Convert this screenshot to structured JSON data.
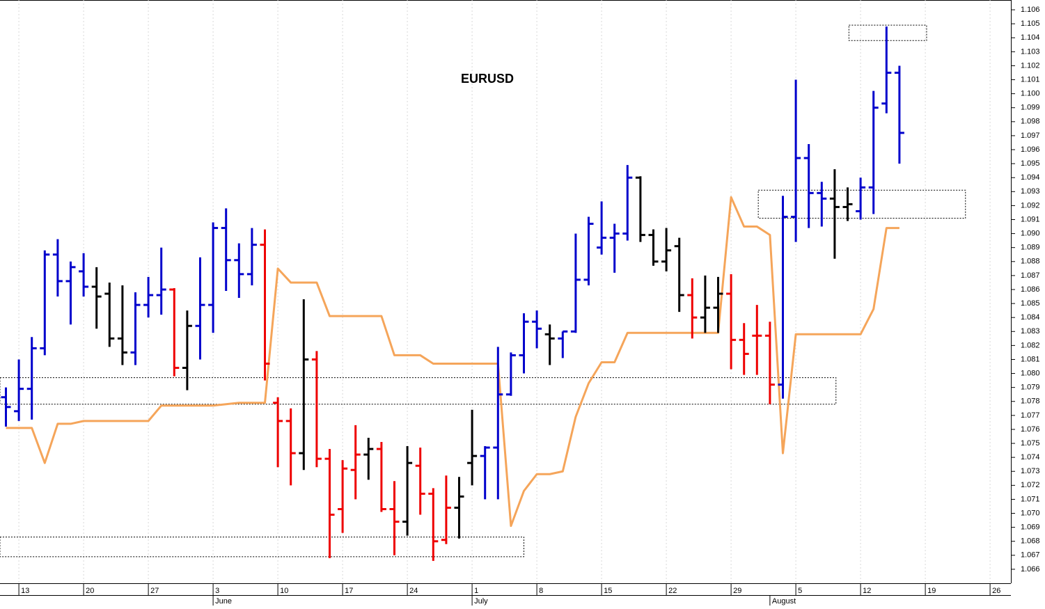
{
  "chart_data": {
    "type": "ohlc",
    "title": "EURUSD",
    "categories": [
      null,
      "13",
      null,
      null,
      null,
      null,
      "20",
      null,
      null,
      null,
      null,
      "27",
      null,
      null,
      null,
      null,
      "3",
      null,
      null,
      null,
      null,
      "10",
      null,
      null,
      null,
      null,
      "17",
      null,
      null,
      null,
      null,
      "24",
      null,
      null,
      null,
      null,
      "1",
      null,
      null,
      null,
      null,
      "8",
      null,
      null,
      null,
      null,
      "15",
      null,
      null,
      null,
      null,
      "22",
      null,
      null,
      null,
      null,
      "29",
      null,
      null,
      null,
      null,
      "5",
      null,
      null,
      null,
      null,
      "12",
      null,
      null,
      null,
      null,
      "19",
      null,
      null,
      null,
      null,
      "26",
      null
    ],
    "months": [
      null,
      null,
      null,
      null,
      null,
      null,
      null,
      null,
      null,
      null,
      null,
      null,
      null,
      null,
      null,
      null,
      "June",
      null,
      null,
      null,
      null,
      null,
      null,
      null,
      null,
      null,
      null,
      null,
      null,
      null,
      null,
      null,
      null,
      null,
      null,
      null,
      "July",
      null,
      null,
      null,
      null,
      null,
      null,
      null,
      null,
      null,
      null,
      null,
      null,
      null,
      null,
      null,
      null,
      null,
      null,
      null,
      null,
      null,
      null,
      "August",
      null,
      null,
      null,
      null,
      null,
      null,
      null,
      null,
      null,
      null,
      null,
      null,
      null,
      null,
      null,
      null,
      null,
      null
    ],
    "open": [
      1.0783,
      1.0773,
      1.0789,
      1.0818,
      1.0885,
      1.0866,
      1.0873,
      1.0862,
      1.0857,
      1.0825,
      1.0815,
      1.0849,
      1.0856,
      1.086,
      1.0804,
      1.0834,
      1.0849,
      1.0904,
      1.0881,
      1.0871,
      1.0892,
      1.0779,
      1.0766,
      1.0743,
      1.081,
      1.0739,
      1.0703,
      1.0731,
      1.0742,
      1.0746,
      1.0703,
      1.0694,
      1.0734,
      1.0714,
      1.0681,
      1.0704,
      1.0736,
      1.0741,
      1.0747,
      1.0785,
      1.0813,
      1.0837,
      1.0828,
      1.0825,
      1.083,
      1.0867,
      1.089,
      1.0897,
      1.09,
      1.094,
      1.0899,
      1.088,
      1.0891,
      1.0856,
      1.084,
      1.0847,
      1.0857,
      1.0824,
      1.0827,
      1.0827,
      1.0792,
      1.0912,
      1.0954,
      1.0929,
      1.0925,
      1.0919,
      1.0916,
      1.0933,
      1.0993,
      1.1015,
      null,
      null,
      null,
      null,
      null,
      null,
      null,
      null
    ],
    "high": [
      1.079,
      1.081,
      1.0826,
      1.0888,
      1.0896,
      1.088,
      1.0886,
      1.0876,
      1.0865,
      1.0863,
      1.0858,
      1.0869,
      1.089,
      1.0861,
      1.0845,
      1.0883,
      1.0908,
      1.0918,
      1.0893,
      1.0904,
      1.0903,
      1.0783,
      1.0775,
      1.0853,
      1.0816,
      1.0746,
      1.0738,
      1.0763,
      1.0754,
      1.0751,
      1.0723,
      1.0748,
      1.0747,
      1.0718,
      1.0727,
      1.0726,
      1.0774,
      1.0748,
      1.0819,
      1.0815,
      1.0843,
      1.0845,
      1.0835,
      1.083,
      1.09,
      1.0912,
      1.0923,
      1.0907,
      1.0949,
      1.0941,
      1.0903,
      1.0904,
      1.0897,
      1.0868,
      1.087,
      1.0869,
      1.0871,
      1.0836,
      1.0849,
      1.0837,
      1.0927,
      1.101,
      1.0964,
      1.0937,
      1.0946,
      1.0933,
      1.094,
      1.1002,
      1.1048,
      1.102,
      null,
      null,
      null,
      null,
      null,
      null,
      null,
      null
    ],
    "low": [
      1.0762,
      1.0766,
      1.0767,
      1.0813,
      1.0855,
      1.0835,
      1.0855,
      1.0832,
      1.0819,
      1.0806,
      1.0806,
      1.084,
      1.0842,
      1.0798,
      1.0788,
      1.081,
      1.0829,
      1.0859,
      1.0854,
      1.0863,
      1.0795,
      1.0733,
      1.072,
      1.0731,
      1.0733,
      1.0668,
      1.0686,
      1.071,
      1.0724,
      1.0701,
      1.067,
      1.0684,
      1.0699,
      1.0666,
      1.0678,
      1.0682,
      1.072,
      1.071,
      1.071,
      1.0784,
      1.08,
      1.0818,
      1.0806,
      1.0811,
      1.0829,
      1.0863,
      1.0885,
      1.0872,
      1.0895,
      1.0894,
      1.0877,
      1.0873,
      1.0844,
      1.0825,
      1.0829,
      1.0829,
      1.0803,
      1.0799,
      1.0799,
      1.0778,
      1.0782,
      1.0894,
      1.0904,
      1.0905,
      1.0882,
      1.0909,
      1.091,
      1.0914,
      1.0986,
      1.095,
      null,
      null,
      null,
      null,
      null,
      null,
      null,
      null
    ],
    "close": [
      1.0776,
      1.0789,
      1.0818,
      1.0885,
      1.0866,
      1.0876,
      1.0862,
      1.0855,
      1.0825,
      1.0815,
      1.0849,
      1.0856,
      1.086,
      1.0804,
      1.0834,
      1.0849,
      1.0904,
      1.0881,
      1.0871,
      1.0892,
      1.0807,
      1.0766,
      1.0743,
      1.081,
      1.0739,
      1.0699,
      1.0732,
      1.0742,
      1.0746,
      1.0703,
      1.0694,
      1.0736,
      1.0714,
      1.068,
      1.0704,
      1.0712,
      1.0741,
      1.0747,
      1.0785,
      1.0813,
      1.0837,
      1.0832,
      1.0825,
      1.083,
      1.0867,
      1.0907,
      1.0897,
      1.09,
      1.094,
      1.0899,
      1.088,
      1.0888,
      1.0856,
      1.084,
      1.0847,
      1.0857,
      1.0824,
      1.0814,
      1.0827,
      1.0792,
      1.0912,
      1.0954,
      1.0929,
      1.0925,
      1.0919,
      1.0921,
      1.0933,
      1.099,
      1.1015,
      1.0972,
      null,
      null,
      null,
      null,
      null,
      null,
      null,
      null
    ],
    "bar_colors": [
      "#0000cc",
      "#0000cc",
      "#0000cc",
      "#0000cc",
      "#0000cc",
      "#0000cc",
      "#0000cc",
      "#000000",
      "#000000",
      "#000000",
      "#0000cc",
      "#0000cc",
      "#0000cc",
      "#ee0000",
      "#000000",
      "#0000cc",
      "#0000cc",
      "#0000cc",
      "#0000cc",
      "#0000cc",
      "#ee0000",
      "#ee0000",
      "#ee0000",
      "#000000",
      "#ee0000",
      "#ee0000",
      "#ee0000",
      "#ee0000",
      "#000000",
      "#ee0000",
      "#ee0000",
      "#000000",
      "#ee0000",
      "#ee0000",
      "#ee0000",
      "#000000",
      "#000000",
      "#0000cc",
      "#0000cc",
      "#0000cc",
      "#0000cc",
      "#0000cc",
      "#000000",
      "#0000cc",
      "#0000cc",
      "#0000cc",
      "#0000cc",
      "#0000cc",
      "#0000cc",
      "#000000",
      "#000000",
      "#000000",
      "#000000",
      "#ee0000",
      "#000000",
      "#000000",
      "#ee0000",
      "#ee0000",
      "#ee0000",
      "#ee0000",
      "#0000cc",
      "#0000cc",
      "#0000cc",
      "#0000cc",
      "#000000",
      "#000000",
      "#0000cc",
      "#0000cc",
      "#0000cc",
      "#0000cc",
      null,
      null,
      null,
      null,
      null,
      null,
      null,
      null
    ],
    "line": {
      "color": "#f5a55a",
      "values": [
        1.0761,
        1.0761,
        1.0761,
        1.0736,
        1.0764,
        1.0764,
        1.0766,
        1.0766,
        1.0766,
        1.0766,
        1.0766,
        1.0766,
        1.0777,
        1.0777,
        1.0777,
        1.0777,
        1.0777,
        1.0778,
        1.0779,
        1.0779,
        1.0779,
        1.0875,
        1.0865,
        1.0865,
        1.0865,
        1.0841,
        1.0841,
        1.0841,
        1.0841,
        1.0841,
        1.0813,
        1.0813,
        1.0813,
        1.0807,
        1.0807,
        1.0807,
        1.0807,
        1.0807,
        1.0807,
        1.0691,
        1.0716,
        1.0728,
        1.0728,
        1.073,
        1.0769,
        1.0793,
        1.0808,
        1.0808,
        1.0829,
        1.0829,
        1.0829,
        1.0829,
        1.0829,
        1.0829,
        1.0829,
        1.0829,
        1.0926,
        1.0905,
        1.0905,
        1.0899,
        1.0743,
        1.0828,
        1.0828,
        1.0828,
        1.0828,
        1.0828,
        1.0828,
        1.0846,
        1.0904,
        1.0904,
        null,
        null,
        null,
        null,
        null,
        null,
        null,
        null
      ]
    },
    "boxes": [
      {
        "x0": 65.1,
        "x1": 71.1,
        "y0": 1.1038,
        "y1": 1.1049
      },
      {
        "x0": 58.1,
        "x1": 74.1,
        "y0": 1.0911,
        "y1": 1.0931
      },
      {
        "x0": -0.46,
        "x1": 64.1,
        "y0": 1.0778,
        "y1": 1.0797
      },
      {
        "x0": -0.46,
        "x1": 40.0,
        "y0": 1.0669,
        "y1": 1.0683
      }
    ],
    "ylim": [
      1.065,
      1.1067
    ],
    "yticks": [
      1.066,
      1.067,
      1.068,
      1.069,
      {
        "value": 1.07,
        "label": "1.070"
      },
      1.071,
      1.072,
      1.073,
      1.074,
      1.075,
      1.076,
      1.077,
      1.078,
      1.079,
      {
        "value": 1.08,
        "label": "1.080"
      },
      1.081,
      1.082,
      1.083,
      1.084,
      1.085,
      1.086,
      1.087,
      1.088,
      1.089,
      {
        "value": 1.09,
        "label": "1.090"
      },
      1.091,
      1.092,
      1.093,
      1.094,
      1.095,
      1.096,
      1.097,
      1.098,
      1.099,
      {
        "value": 1.1,
        "label": "1.100"
      },
      1.101,
      1.102,
      1.103,
      1.104,
      1.105,
      1.106
    ],
    "grid": true
  }
}
